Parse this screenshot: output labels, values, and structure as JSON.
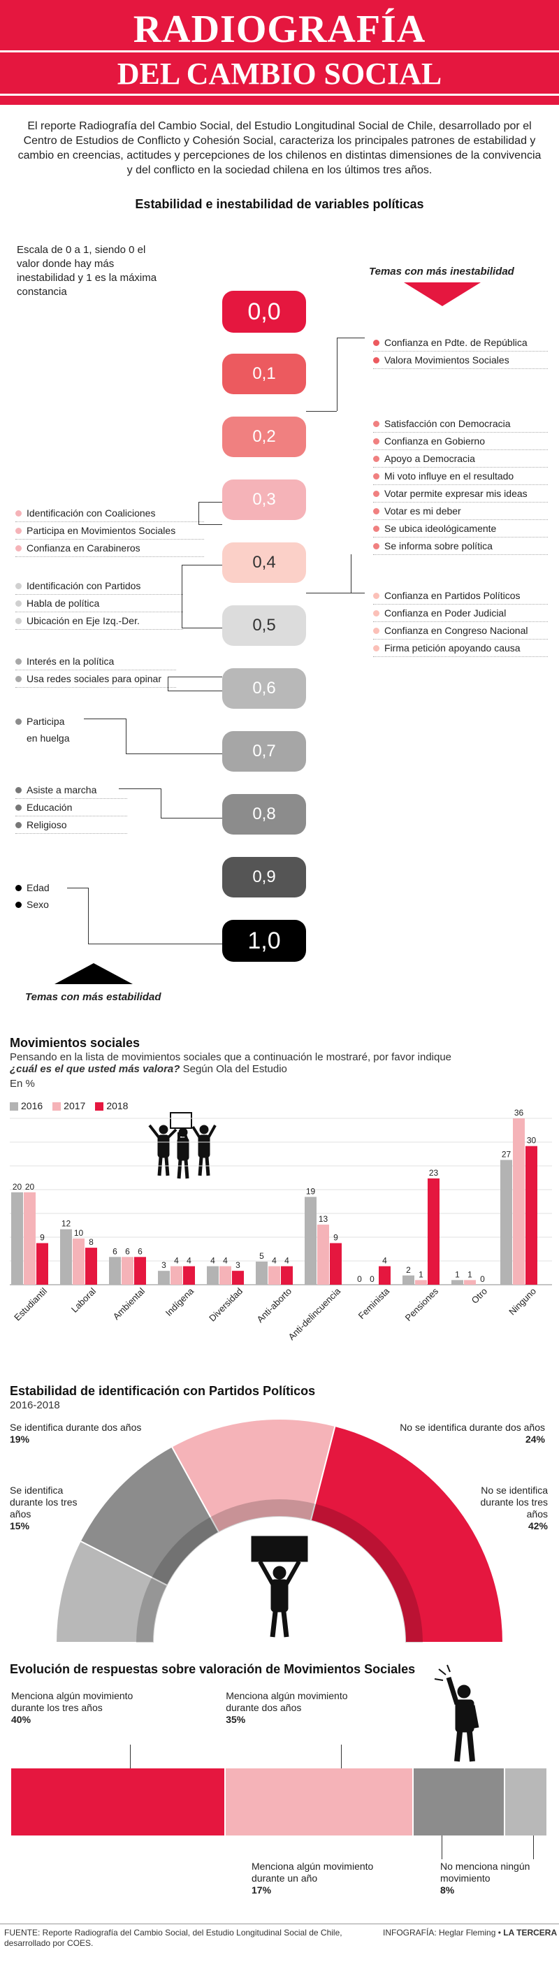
{
  "header": {
    "title_line1": "RADIOGRAFÍA",
    "title_line2": "DEL CAMBIO SOCIAL"
  },
  "intro": "El reporte Radiografía del Cambio Social, del Estudio Longitudinal Social de Chile, desarrollado por el Centro de Estudios de Conflicto y Cohesión Social, caracteriza los principales patrones de estabilidad y cambio en creencias, actitudes y percepciones de los chilenos en distintas dimensiones de la convivencia y del conflicto en la sociedad chilena en los últimos tres años.",
  "stability": {
    "title": "Estabilidad e inestabilidad de variables políticas",
    "scale_note": "Escala de 0 a 1, siendo 0 el valor donde hay más inestabilidad y 1 es la máxima constancia",
    "most_unstable": "Temas con más inestabilidad",
    "most_stable": "Temas con más estabilidad",
    "levels": [
      {
        "label": "0,0",
        "color": "#e5173f",
        "text": "#ffffff"
      },
      {
        "label": "0,1",
        "color": "#ec5a5f",
        "text": "#ffffff"
      },
      {
        "label": "0,2",
        "color": "#f08080",
        "text": "#ffffff"
      },
      {
        "label": "0,3",
        "color": "#f5b3b8",
        "text": "#ffffff"
      },
      {
        "label": "0,4",
        "color": "#fbd0c8",
        "text": "#333333"
      },
      {
        "label": "0,5",
        "color": "#dcdcdc",
        "text": "#333333"
      },
      {
        "label": "0,6",
        "color": "#b8b8b8",
        "text": "#ffffff"
      },
      {
        "label": "0,7",
        "color": "#a6a6a6",
        "text": "#ffffff"
      },
      {
        "label": "0,8",
        "color": "#8c8c8c",
        "text": "#ffffff"
      },
      {
        "label": "0,9",
        "color": "#555555",
        "text": "#ffffff"
      },
      {
        "label": "1,0",
        "color": "#000000",
        "text": "#ffffff"
      }
    ],
    "right_groups": {
      "g01": [
        "Confianza en Pdte. de República",
        "Valora Movimientos Sociales"
      ],
      "g02": [
        "Satisfacción con Democracia",
        "Confianza en Gobierno",
        "Apoyo a Democracia",
        "Mi voto influye en el resultado",
        "Votar permite expresar mis ideas",
        "Votar es mi deber",
        "Se ubica ideológicamente",
        "Se informa sobre política"
      ],
      "g04": [
        "Confianza en Partidos Políticos",
        "Confianza en Poder Judicial",
        "Confianza en Congreso Nacional",
        "Firma petición apoyando causa"
      ]
    },
    "left_groups": {
      "g03": [
        "Identificación con Coaliciones",
        "Participa en Movimientos Sociales",
        "Confianza en Carabineros"
      ],
      "g05": [
        "Identificación con Partidos",
        "Habla de política",
        "Ubicación en Eje Izq.-Der."
      ],
      "g06": [
        "Interés en la política",
        "Usa redes sociales para opinar"
      ],
      "g07": [
        "Participa",
        "en huelga"
      ],
      "g08": [
        "Asiste a marcha",
        "Educación",
        "Religioso"
      ],
      "g10": [
        "Edad",
        "Sexo"
      ]
    }
  },
  "movements": {
    "title": "Movimientos sociales",
    "question_part1": "Pensando en la lista de movimientos sociales que a  continuación le mostraré, por favor indique",
    "question_part2": "¿cuál es el que usted más valora?",
    "question_part3": "Según Ola del Estudio",
    "unit": "En %"
  },
  "chart_data": [
    {
      "type": "bar",
      "categories": [
        "Estudiantil",
        "Laboral",
        "Ambiental",
        "Indígena",
        "Diversidad",
        "Anti-aborto",
        "Anti-delincuencia",
        "Feminista",
        "Pensiones",
        "Otro",
        "Ninguno"
      ],
      "series": [
        {
          "name": "2016",
          "color": "#b3b3b3",
          "values": [
            20,
            12,
            6,
            3,
            4,
            5,
            19,
            0,
            2,
            1,
            27
          ]
        },
        {
          "name": "2017",
          "color": "#f5b3b8",
          "values": [
            20,
            10,
            6,
            4,
            4,
            4,
            13,
            0,
            1,
            1,
            36
          ]
        },
        {
          "name": "2018",
          "color": "#e5173f",
          "values": [
            9,
            8,
            6,
            4,
            3,
            4,
            9,
            4,
            23,
            0,
            30
          ]
        }
      ],
      "ylim": [
        0,
        36
      ]
    },
    {
      "type": "pie",
      "title": "Estabilidad de identificación con Partidos Políticos",
      "subtitle": "2016-2018",
      "slices": [
        {
          "label": "Se identifica durante los tres años",
          "value": 15,
          "display": "15%",
          "color": "#b8b8b8"
        },
        {
          "label": "Se identifica durante dos años",
          "value": 19,
          "display": "19%",
          "color": "#8c8c8c"
        },
        {
          "label": "No se identifica durante  dos años",
          "value": 24,
          "display": "24%",
          "color": "#f5b3b8"
        },
        {
          "label": "No se identifica durante los tres años",
          "value": 42,
          "display": "42%",
          "color": "#e5173f"
        }
      ]
    },
    {
      "type": "bar",
      "title": "Evolución de respuestas sobre valoración de Movimientos Sociales",
      "stacked": true,
      "segments": [
        {
          "label": "Menciona algún movimiento durante  los tres años",
          "value": 40,
          "display": "40%",
          "color": "#e5173f"
        },
        {
          "label": "Menciona algún movimiento durante dos años",
          "value": 35,
          "display": "35%",
          "color": "#f5b3b8"
        },
        {
          "label": "Menciona algún movimiento durante un año",
          "value": 17,
          "display": "17%",
          "color": "#8c8c8c"
        },
        {
          "label": "No menciona ningún movimiento",
          "value": 8,
          "display": "8%",
          "color": "#b8b8b8"
        }
      ]
    }
  ],
  "footer": {
    "source": "FUENTE: Reporte Radiografía del Cambio Social, del Estudio Longitudinal Social de Chile, desarrollado por COES.",
    "credit_prefix": "INFOGRAFÍA: Heglar Fleming •",
    "credit_brand": "LA TERCERA"
  },
  "colors": {
    "red": "#e5173f",
    "pink": "#f5b3b8",
    "gray": "#b3b3b3",
    "dark": "#8c8c8c"
  }
}
